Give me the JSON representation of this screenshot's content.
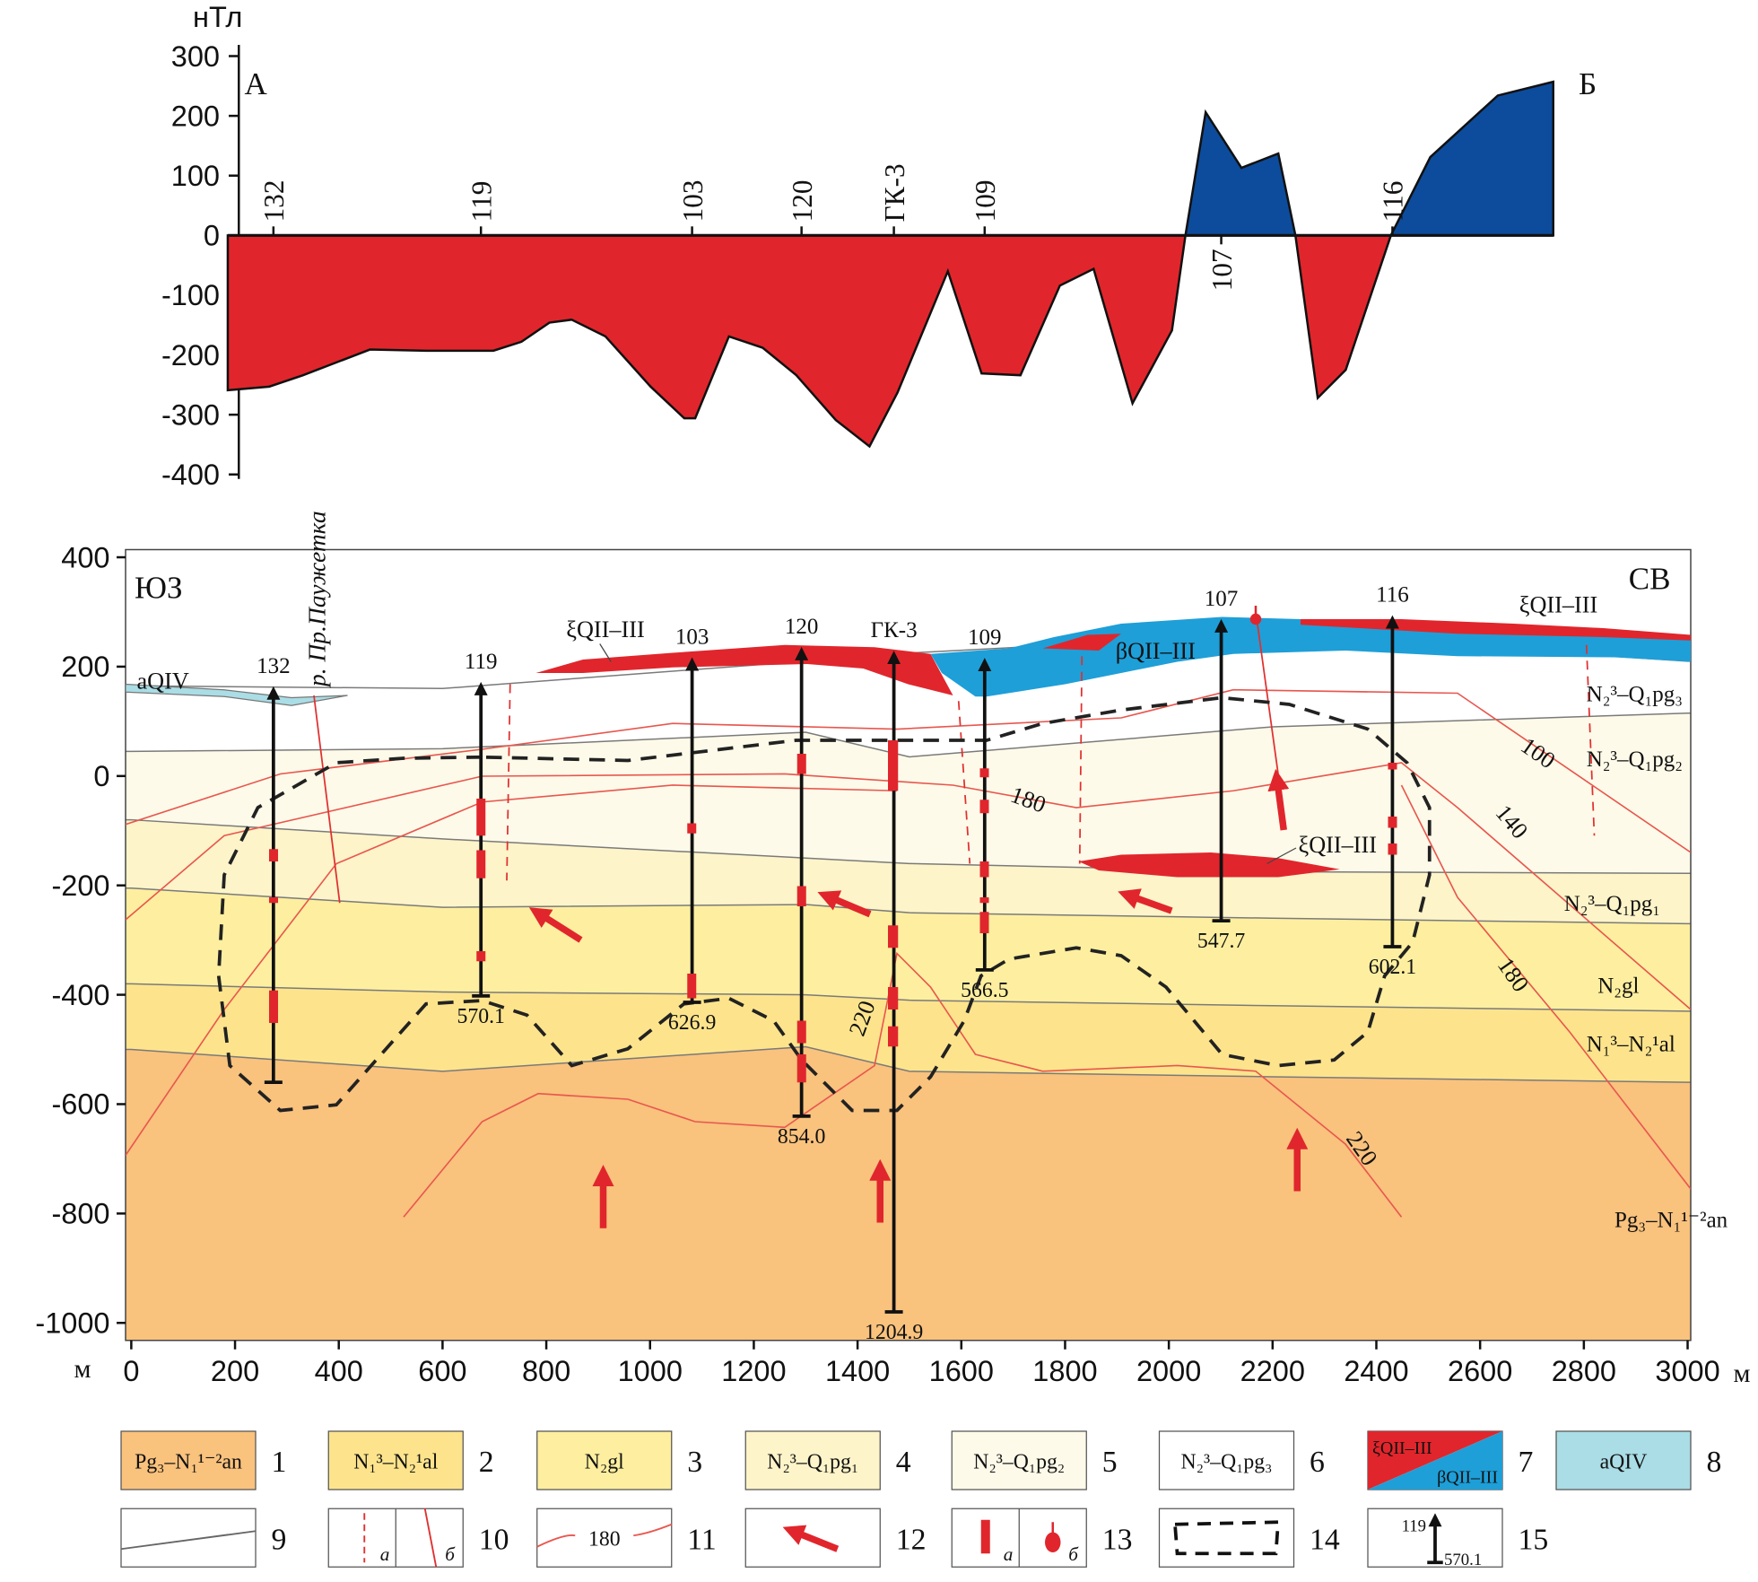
{
  "chart_data": [
    {
      "type": "area",
      "y_label": "нТл",
      "left_label": "А",
      "right_label": "Б",
      "x": [
        186,
        266,
        331,
        460,
        569,
        698,
        752,
        806,
        849,
        914,
        1001,
        1066,
        1087,
        1152,
        1217,
        1282,
        1358,
        1423,
        1477,
        1574,
        1639,
        1714,
        1790,
        1855,
        1930,
        2006,
        2032,
        2071,
        2140,
        2211,
        2244,
        2287,
        2341,
        2428,
        2504,
        2634,
        2741
      ],
      "values": [
        -259,
        -253,
        -234,
        -191,
        -193,
        -193,
        -178,
        -146,
        -141,
        -169,
        -253,
        -306,
        -306,
        -169,
        -188,
        -234,
        -309,
        -353,
        -263,
        -60,
        -231,
        -234,
        -84,
        -56,
        -281,
        -159,
        0,
        206,
        113,
        137,
        0,
        -272,
        -225,
        0,
        131,
        234,
        257
      ],
      "colors": {
        "positive": "#0d4c9c",
        "negative": "#e0262c"
      },
      "xlim": [
        -11,
        3006
      ],
      "ylim": [
        -400,
        300
      ],
      "yticks": [
        300,
        200,
        100,
        0,
        -100,
        -200,
        -300,
        -400
      ]
    },
    {
      "type": "section",
      "corner_labels": [
        "ЮЗ",
        "СВ"
      ],
      "x_label": "м",
      "xlim": [
        -11,
        3006
      ],
      "xticks": [
        0,
        200,
        400,
        600,
        800,
        1000,
        1200,
        1400,
        1600,
        1800,
        2000,
        2200,
        2400,
        2600,
        2800,
        3000
      ],
      "ylim": [
        -1032,
        414
      ],
      "yticks": [
        400,
        200,
        0,
        -200,
        -400,
        -600,
        -800,
        -1000
      ],
      "boundary_x": [
        0,
        600,
        1300,
        1500,
        2200,
        3000
      ],
      "layers": [
        {
          "top": [
            -500,
            -540,
            -495,
            -540,
            -550,
            -560
          ]
        },
        {
          "top": [
            -380,
            -395,
            -400,
            -410,
            -420,
            -430
          ]
        },
        {
          "top": [
            -205,
            -240,
            -235,
            -250,
            -260,
            -270
          ]
        },
        {
          "top": [
            -80,
            -115,
            -150,
            -160,
            -175,
            -178
          ]
        },
        {
          "top": [
            45,
            50,
            80,
            35,
            90,
            115
          ]
        },
        {
          "top": [
            165,
            160,
            210,
            225,
            260,
            210
          ]
        }
      ],
      "wells": [
        {
          "name": "132",
          "x": 274,
          "top": 160,
          "bottom": -560
        },
        {
          "name": "119",
          "x": 674,
          "top": 168,
          "depth": 570.1
        },
        {
          "name": "103",
          "x": 1081,
          "top": 213,
          "depth": 626.9
        },
        {
          "name": "120",
          "x": 1292,
          "top": 232,
          "depth": {
            "value": 854,
            "label": "854.0"
          }
        },
        {
          "name": "ГК-3",
          "x": 1470,
          "top": 225,
          "depth": 1204.9
        },
        {
          "name": "109",
          "x": 1645,
          "top": 212,
          "depth": 566.5
        },
        {
          "name": "107",
          "x": 2101,
          "top": 283,
          "depth": 547.7
        },
        {
          "name": "116",
          "x": 2431,
          "top": 290,
          "depth": 602.1
        }
      ],
      "annotations": [
        "aQIV",
        "р. Пр.Паужетка",
        "ξQII–III",
        "ξQII–III",
        "ξQII–III",
        "βQII–III"
      ],
      "isotherm_labels": [
        100,
        140,
        180,
        180,
        220,
        220
      ],
      "legend": [
        {
          "number": 1,
          "label": "Pg₃–N₁¹⁻²an",
          "color": "#f9c27d"
        },
        {
          "number": 2,
          "label": "N₁³–N₂¹al",
          "color": "#fde48c"
        },
        {
          "number": 3,
          "label": "N₂gl",
          "color": "#fdef9f"
        },
        {
          "number": 4,
          "label": "N₂³–Q₁pg₁",
          "color": "#fdf4c9"
        },
        {
          "number": 5,
          "label": "N₂³–Q₁pg₂",
          "color": "#fefae9"
        },
        {
          "number": 6,
          "label": "N₂³–Q₁pg₃",
          "color": "#ffffff"
        },
        {
          "number": 7,
          "labels": [
            "ξQII–III",
            "βQII–III"
          ],
          "colors": [
            "#e0262c",
            "#1e9fd8"
          ]
        },
        {
          "number": 8,
          "label": "aQIV",
          "color": "#aadde5"
        },
        {
          "number": 9
        },
        {
          "number": 10,
          "labels": [
            "а",
            "б"
          ]
        },
        {
          "number": 11,
          "label": 180
        },
        {
          "number": 12
        },
        {
          "number": 13,
          "labels": [
            "а",
            "б"
          ]
        },
        {
          "number": 14
        },
        {
          "number": 15,
          "labels": [
            119,
            570.1
          ]
        }
      ]
    }
  ]
}
